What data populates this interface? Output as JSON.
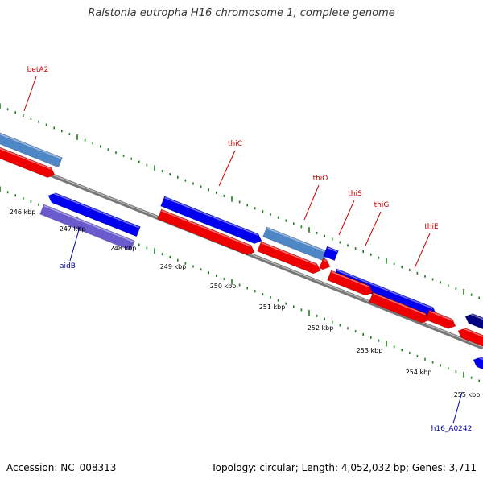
{
  "header": {
    "title": "Ralstonia eutropha H16 chromosome 1, complete genome"
  },
  "footer": {
    "accession": "Accession: NC_008313",
    "summary": "Topology: circular; Length: 4,052,032 bp; Genes: 3,711"
  },
  "colors": {
    "forward_cds": "#0000ee",
    "forward_cds_light": "#4f86c6",
    "forward_cds_dark": "#000080",
    "reverse_cds": "#ee0000",
    "purple_feature": "#6a5acd",
    "backbone": "#888888",
    "tick": "#1a7f1a",
    "label_forward": "#cc0000",
    "label_reverse": "#0000aa"
  },
  "ticks": [
    "246 kbp",
    "247 kbp",
    "248 kbp",
    "249 kbp",
    "250 kbp",
    "251 kbp",
    "252 kbp",
    "253 kbp",
    "254 kbp",
    "255 kbp"
  ],
  "gene_labels": [
    {
      "text": "betA2",
      "strand": "forward"
    },
    {
      "text": "thiC",
      "strand": "forward"
    },
    {
      "text": "thiO",
      "strand": "forward"
    },
    {
      "text": "thiS",
      "strand": "forward"
    },
    {
      "text": "thiG",
      "strand": "forward"
    },
    {
      "text": "thiE",
      "strand": "forward"
    },
    {
      "text": "aidB",
      "strand": "reverse"
    },
    {
      "text": "h16_A0242",
      "strand": "reverse"
    }
  ]
}
